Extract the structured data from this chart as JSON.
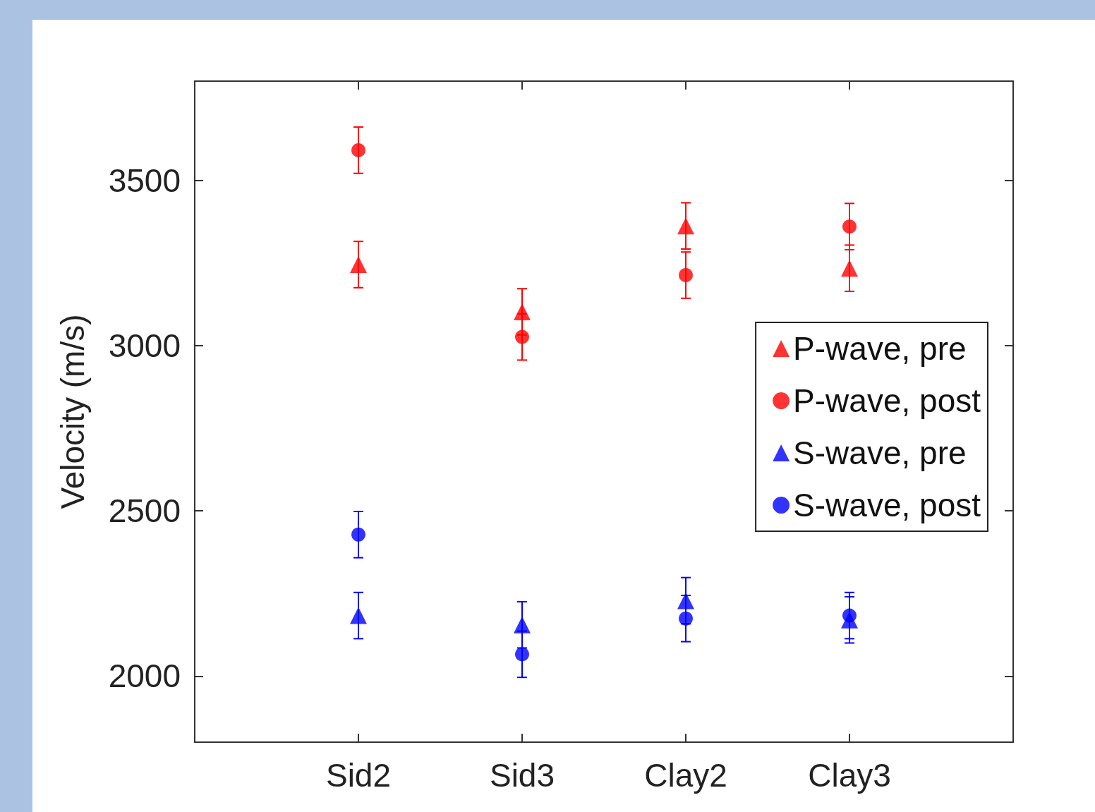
{
  "chart_data": {
    "type": "scatter",
    "ylabel": "Velocity (m/s)",
    "categories": [
      "Sid2",
      "Sid3",
      "Clay2",
      "Clay3"
    ],
    "ylim": [
      1800,
      3800
    ],
    "yticks": [
      2000,
      2500,
      3000,
      3500
    ],
    "grid": false,
    "legend": "right",
    "series": [
      {
        "name": "P-wave, pre",
        "color": "#ff0000",
        "marker": "triangle",
        "values": [
          3245,
          3102,
          3362,
          3234
        ],
        "errors": [
          70,
          70,
          70,
          70
        ]
      },
      {
        "name": "P-wave, post",
        "color": "#ff0000",
        "marker": "circle",
        "values": [
          3591,
          3026,
          3213,
          3360
        ],
        "errors": [
          70,
          70,
          70,
          70
        ]
      },
      {
        "name": "S-wave, pre",
        "color": "#0000ff",
        "marker": "triangle",
        "values": [
          2183,
          2155,
          2228,
          2170
        ],
        "errors": [
          70,
          70,
          70,
          70
        ]
      },
      {
        "name": "S-wave, post",
        "color": "#0000ff",
        "marker": "circle",
        "values": [
          2428,
          2066,
          2174,
          2183
        ],
        "errors": [
          70,
          70,
          70,
          70
        ]
      }
    ]
  }
}
